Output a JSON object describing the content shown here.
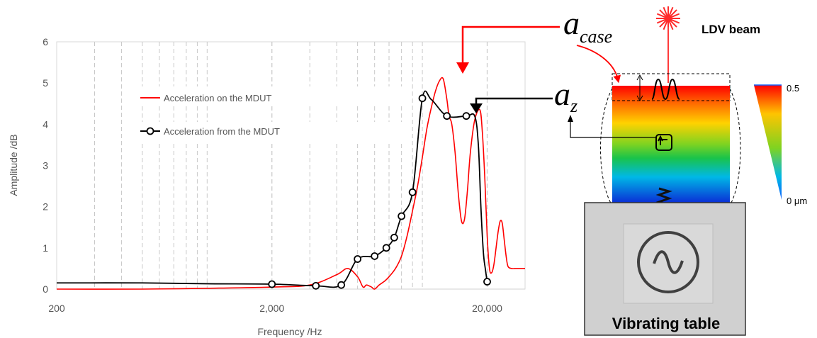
{
  "chart_data": {
    "type": "line",
    "xscale": "log",
    "xlim": [
      200,
      30000
    ],
    "ylim": [
      0,
      6
    ],
    "yticks": [
      0,
      1,
      2,
      3,
      4,
      5,
      6
    ],
    "xticks": [
      200,
      2000,
      20000
    ],
    "xtick_labels": [
      "200",
      "2,000",
      "20,000"
    ],
    "ylabel": "Amplitude /dB",
    "xlabel": "Frequency /Hz",
    "grid": "vertical-dashed",
    "legend_position": "upper-left",
    "series": [
      {
        "name": "Acceleration on the MDUT",
        "color": "#ff0000",
        "marker": "none",
        "x": [
          200,
          500,
          1000,
          2000,
          3000,
          4000,
          4500,
          5000,
          5300,
          5500,
          5800,
          6000,
          6300,
          6700,
          7000,
          7500,
          8000,
          8500,
          9000,
          9500,
          10000,
          10500,
          11000,
          11500,
          12000,
          12500,
          13000,
          13300,
          13700,
          14200,
          14700,
          15200,
          15700,
          16200,
          16700,
          17500,
          18500,
          19000,
          19500,
          20000,
          20500,
          21000,
          21500,
          22000,
          22500,
          23000,
          23500,
          24000,
          24500,
          25000,
          26000,
          27000,
          28000,
          29000,
          30000
        ],
        "y": [
          0.0,
          0.0,
          0.02,
          0.05,
          0.1,
          0.35,
          0.5,
          0.3,
          0.05,
          0.1,
          0.05,
          0.0,
          0.1,
          0.2,
          0.3,
          0.5,
          0.8,
          1.3,
          1.9,
          2.5,
          3.2,
          3.9,
          4.4,
          4.8,
          5.05,
          5.1,
          4.6,
          4.2,
          4.0,
          3.3,
          2.3,
          1.65,
          1.7,
          2.4,
          3.3,
          4.1,
          4.35,
          3.8,
          2.7,
          1.3,
          0.5,
          0.4,
          0.6,
          1.0,
          1.4,
          1.65,
          1.6,
          1.2,
          0.8,
          0.55,
          0.5,
          0.5,
          0.5,
          0.5,
          0.5
        ]
      },
      {
        "name": "Acceleration from the MDUT",
        "color": "#000000",
        "marker": "open-circle",
        "x": [
          200,
          500,
          1000,
          2000,
          3200,
          4200,
          5000,
          6000,
          6800,
          7400,
          8000,
          9000,
          10000,
          11000,
          13000,
          16000,
          17500,
          18200,
          18700,
          19200,
          19600,
          20000
        ],
        "y": [
          0.15,
          0.15,
          0.13,
          0.12,
          0.08,
          0.1,
          0.73,
          0.8,
          1.0,
          1.25,
          1.77,
          2.35,
          4.63,
          4.6,
          4.2,
          4.2,
          4.2,
          3.5,
          2.0,
          0.9,
          0.5,
          0.18
        ],
        "marker_x": [
          2000,
          3200,
          4200,
          5000,
          6000,
          6800,
          7400,
          8000,
          9000,
          10000,
          13000,
          16000,
          20000
        ],
        "marker_y": [
          0.12,
          0.08,
          0.1,
          0.73,
          0.8,
          1.0,
          1.25,
          1.77,
          2.35,
          4.63,
          4.2,
          4.2,
          0.18
        ]
      }
    ]
  },
  "schematic": {
    "a_symbol": "a",
    "case_subscript": "case",
    "z_subscript": "z",
    "ldv_label": "LDV beam",
    "table_label": "Vibrating table",
    "colorbar_max": "0.5",
    "colorbar_min": "0  μm",
    "arrow_color": "#ff0000"
  }
}
